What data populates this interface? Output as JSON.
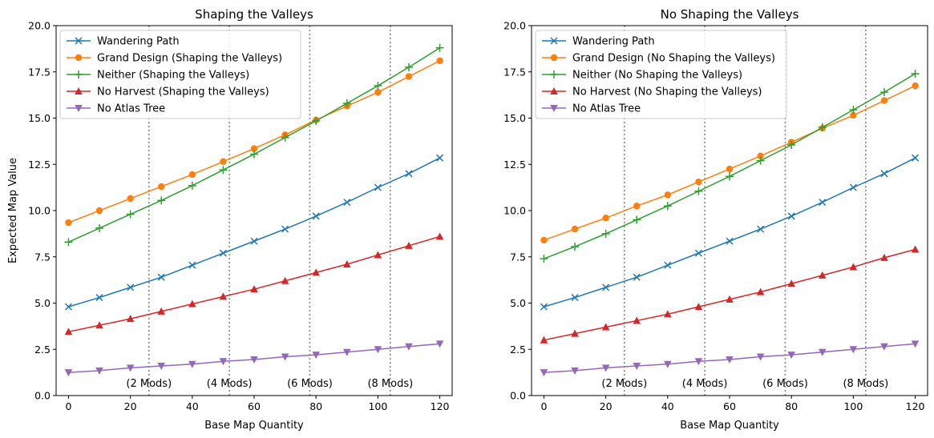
{
  "chart_data": [
    {
      "type": "line",
      "title": "Shaping the Valleys",
      "xlabel": "Base Map Quantity",
      "ylabel": "Expected Map Value",
      "xlim": [
        -4,
        124
      ],
      "ylim": [
        0,
        20
      ],
      "xticks": [
        0,
        20,
        40,
        60,
        80,
        100,
        120
      ],
      "yticks": [
        0.0,
        2.5,
        5.0,
        7.5,
        10.0,
        12.5,
        15.0,
        17.5,
        20.0
      ],
      "grid": false,
      "legend_position": "top-left",
      "x": [
        0,
        10,
        20,
        30,
        40,
        50,
        60,
        70,
        80,
        90,
        100,
        110,
        120
      ],
      "vlines": [
        26,
        52,
        78,
        104
      ],
      "annotations": [
        {
          "text": "(2 Mods)",
          "x": 26,
          "y": 0.7
        },
        {
          "text": "(4 Mods)",
          "x": 52,
          "y": 0.7
        },
        {
          "text": "(6 Mods)",
          "x": 78,
          "y": 0.7
        },
        {
          "text": "(8 Mods)",
          "x": 104,
          "y": 0.7
        }
      ],
      "series": [
        {
          "name": "Wandering Path",
          "color": "#1f77b4",
          "marker": "x",
          "values": [
            4.8,
            5.3,
            5.85,
            6.4,
            7.05,
            7.7,
            8.35,
            9.0,
            9.7,
            10.45,
            11.25,
            12.0,
            12.85
          ]
        },
        {
          "name": "Grand Design (Shaping the Valleys)",
          "color": "#ff7f0e",
          "marker": "o",
          "values": [
            9.35,
            10.0,
            10.65,
            11.3,
            11.95,
            12.65,
            13.35,
            14.1,
            14.9,
            15.65,
            16.4,
            17.25,
            18.1
          ]
        },
        {
          "name": "Neither (Shaping the Valleys)",
          "color": "#2ca02c",
          "marker": "+",
          "values": [
            8.3,
            9.05,
            9.8,
            10.55,
            11.35,
            12.2,
            13.05,
            13.95,
            14.85,
            15.8,
            16.75,
            17.75,
            18.8
          ]
        },
        {
          "name": "No Harvest (Shaping the Valleys)",
          "color": "#d62728",
          "marker": "^",
          "values": [
            3.45,
            3.8,
            4.15,
            4.55,
            4.95,
            5.35,
            5.75,
            6.2,
            6.65,
            7.1,
            7.6,
            8.1,
            8.6
          ]
        },
        {
          "name": "No Atlas Tree",
          "color": "#9467bd",
          "marker": "v",
          "values": [
            1.25,
            1.35,
            1.5,
            1.6,
            1.7,
            1.85,
            1.95,
            2.1,
            2.2,
            2.35,
            2.5,
            2.65,
            2.8
          ]
        }
      ]
    },
    {
      "type": "line",
      "title": "No Shaping the Valleys",
      "xlabel": "Base Map Quantity",
      "ylabel": "",
      "xlim": [
        -4,
        124
      ],
      "ylim": [
        0,
        20
      ],
      "xticks": [
        0,
        20,
        40,
        60,
        80,
        100,
        120
      ],
      "yticks": [
        0.0,
        2.5,
        5.0,
        7.5,
        10.0,
        12.5,
        15.0,
        17.5,
        20.0
      ],
      "grid": false,
      "legend_position": "top-left",
      "x": [
        0,
        10,
        20,
        30,
        40,
        50,
        60,
        70,
        80,
        90,
        100,
        110,
        120
      ],
      "vlines": [
        26,
        52,
        78,
        104
      ],
      "annotations": [
        {
          "text": "(2 Mods)",
          "x": 26,
          "y": 0.7
        },
        {
          "text": "(4 Mods)",
          "x": 52,
          "y": 0.7
        },
        {
          "text": "(6 Mods)",
          "x": 78,
          "y": 0.7
        },
        {
          "text": "(8 Mods)",
          "x": 104,
          "y": 0.7
        }
      ],
      "series": [
        {
          "name": "Wandering Path",
          "color": "#1f77b4",
          "marker": "x",
          "values": [
            4.8,
            5.3,
            5.85,
            6.4,
            7.05,
            7.7,
            8.35,
            9.0,
            9.7,
            10.45,
            11.25,
            12.0,
            12.85
          ]
        },
        {
          "name": "Grand Design (No Shaping the Valleys)",
          "color": "#ff7f0e",
          "marker": "o",
          "values": [
            8.4,
            9.0,
            9.6,
            10.25,
            10.85,
            11.55,
            12.25,
            12.95,
            13.7,
            14.45,
            15.15,
            15.95,
            16.75
          ]
        },
        {
          "name": "Neither (No Shaping the Valleys)",
          "color": "#2ca02c",
          "marker": "+",
          "values": [
            7.4,
            8.05,
            8.75,
            9.5,
            10.25,
            11.05,
            11.85,
            12.7,
            13.55,
            14.5,
            15.45,
            16.4,
            17.4
          ]
        },
        {
          "name": "No Harvest (No Shaping the Valleys)",
          "color": "#d62728",
          "marker": "^",
          "values": [
            3.0,
            3.35,
            3.7,
            4.05,
            4.4,
            4.8,
            5.2,
            5.6,
            6.05,
            6.5,
            6.95,
            7.45,
            7.9
          ]
        },
        {
          "name": "No Atlas Tree",
          "color": "#9467bd",
          "marker": "v",
          "values": [
            1.25,
            1.35,
            1.5,
            1.6,
            1.7,
            1.85,
            1.95,
            2.1,
            2.2,
            2.35,
            2.5,
            2.65,
            2.8
          ]
        }
      ]
    }
  ]
}
